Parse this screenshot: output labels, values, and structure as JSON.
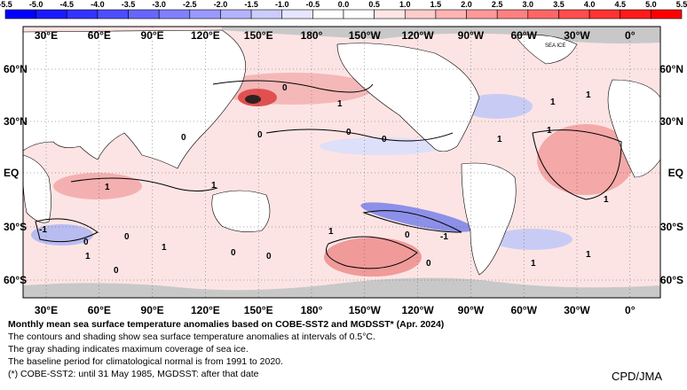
{
  "colorbar": {
    "ticks": [
      "-5.5",
      "-5.0",
      "-4.5",
      "-4.0",
      "-3.5",
      "-3.0",
      "-2.5",
      "-2.0",
      "-1.5",
      "-1.0",
      "-0.5",
      "0.0",
      "0.5",
      "1.0",
      "1.5",
      "2.0",
      "2.5",
      "3.0",
      "3.5",
      "4.0",
      "4.5",
      "5.0",
      "5.5"
    ],
    "colors": [
      "#0000ff",
      "#1a1aff",
      "#3333ff",
      "#4d4dff",
      "#6666ff",
      "#8080ff",
      "#9999ff",
      "#b3b3ff",
      "#ccccff",
      "#e6e6ff",
      "#ffffff",
      "#ffffff",
      "#ffe6e6",
      "#ffcccc",
      "#ffb3b3",
      "#ff9999",
      "#ff8080",
      "#ff6666",
      "#ff4d4d",
      "#ff3333",
      "#ff1a1a",
      "#ff0000"
    ]
  },
  "map": {
    "lon_labels": [
      "30°E",
      "60°E",
      "90°E",
      "120°E",
      "150°E",
      "180°",
      "150°W",
      "120°W",
      "90°W",
      "60°W",
      "30°W",
      "0°"
    ],
    "lat_labels": [
      "60°N",
      "30°N",
      "EQ",
      "30°S",
      "60°S"
    ],
    "sea_ice_label": "SEA ICE",
    "contour_labels": [
      "0",
      "1",
      "0",
      "1",
      "0",
      "0",
      "0",
      "1",
      "1",
      "1",
      "1",
      "0",
      "0",
      "1",
      "1",
      "0",
      "-1",
      "0",
      "1",
      "0",
      "1",
      "1",
      "-1",
      "0",
      "0",
      "1",
      "1"
    ],
    "land_color": "#ffffff",
    "ice_color": "#c8c8c8",
    "warm_color": "#f4b8b8",
    "cool_color": "#c8ccf4"
  },
  "caption": {
    "title": "Monthly mean sea surface temperature anomalies based on COBE-SST2 and MGDSST* (Apr. 2024)",
    "lines": [
      "The contours and shading show sea surface temperature anomalies at intervals of 0.5°C.",
      "The gray shading indicates maximum coverage of sea ice.",
      "The baseline period for climatological normal is from 1991 to 2020.",
      "(*) COBE-SST2: until 31 May 1985, MGDSST: after that date"
    ]
  },
  "credit": "CPD/JMA"
}
